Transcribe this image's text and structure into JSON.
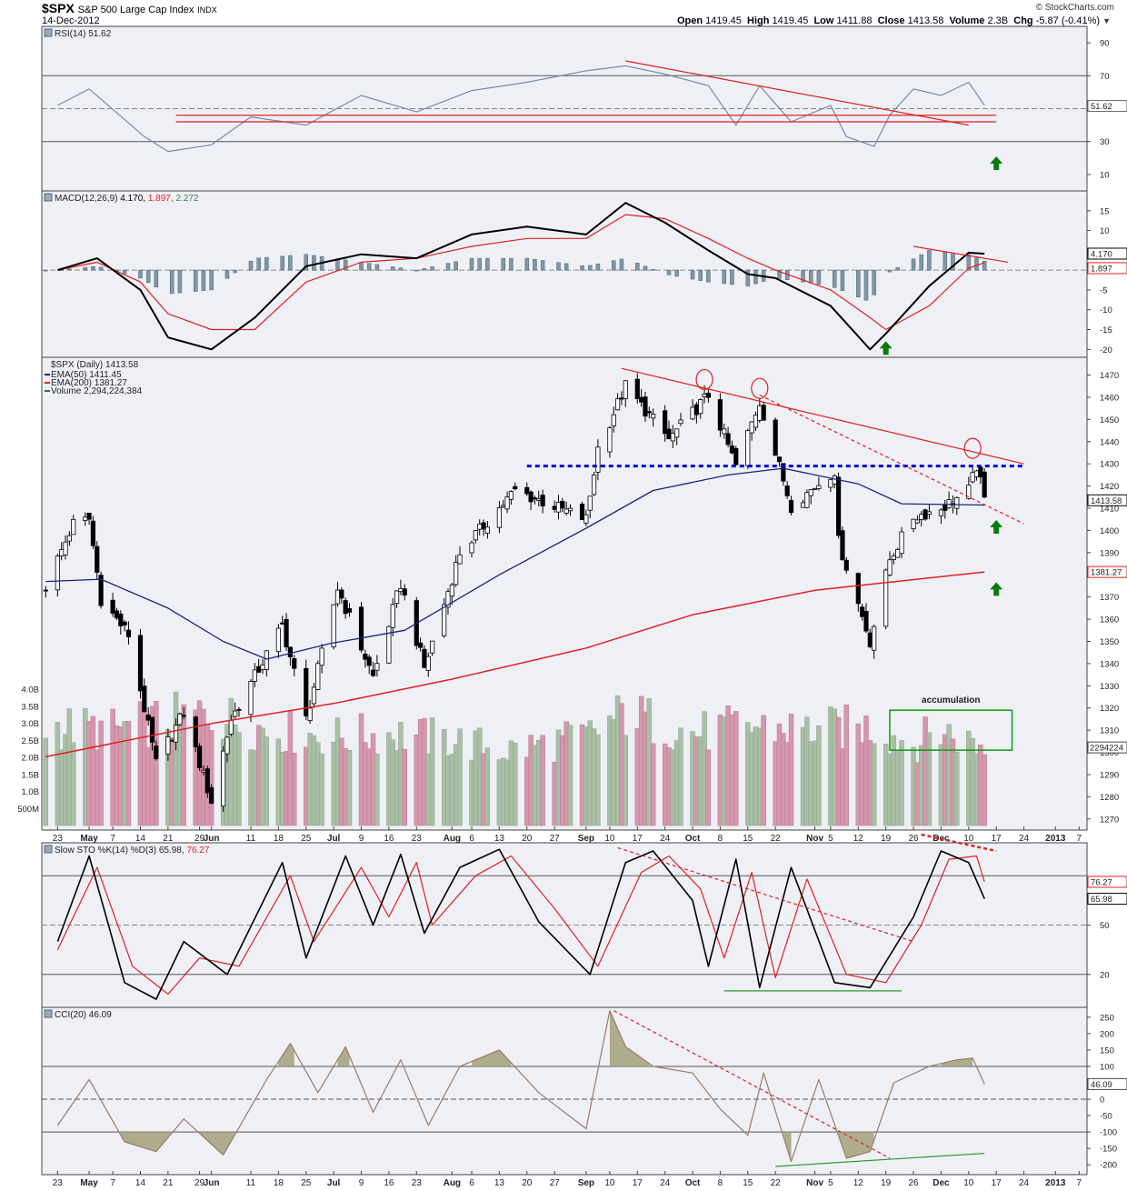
{
  "header": {
    "symbol": "$SPX",
    "name": "S&P 500 Large Cap Index",
    "exchange": "INDX",
    "date": "14-Dec-2012",
    "source": "© StockCharts.com",
    "open_label": "Open",
    "open": "1419.45",
    "high_label": "High",
    "high": "1419.45",
    "low_label": "Low",
    "low": "1411.88",
    "close_label": "Close",
    "close": "1413.58",
    "volume_label": "Volume",
    "volume": "2.3B",
    "chg_label": "Chg",
    "chg": "-5.87 (-0.41%)"
  },
  "colors": {
    "panel_bg": "#eef0f6",
    "up_volume": "#a9bfa6",
    "down_volume": "#d597ad",
    "ema50": "#1a237e",
    "ema200": "#e02020",
    "annotation_red": "#e02020",
    "resistance_blue": "#0000cc",
    "arrow_green": "#0a7a0a",
    "histogram": "#7f97a6",
    "rsi_line": "#7b8aa8",
    "cci_line": "#9a7a68",
    "cci_fill": "#a3a07a"
  },
  "chart_data": [
    {
      "type": "line",
      "panel": "rsi",
      "title": "RSI(14) 51.62",
      "ylim": [
        0,
        100
      ],
      "y_ticks": [
        90,
        70,
        50,
        30,
        10
      ],
      "reference_lines": [
        70,
        30
      ],
      "last_value_label": "51.62",
      "series": [
        {
          "x": [
            "2012-04-23",
            "2012-05-01",
            "2012-05-15",
            "2012-05-21",
            "2012-06-01",
            "2012-06-11",
            "2012-06-25",
            "2012-07-09",
            "2012-07-23",
            "2012-08-06",
            "2012-08-20",
            "2012-09-04",
            "2012-09-14",
            "2012-09-24",
            "2012-10-05",
            "2012-10-12",
            "2012-10-18",
            "2012-10-26",
            "2012-11-05",
            "2012-11-09",
            "2012-11-16",
            "2012-11-20",
            "2012-11-26",
            "2012-12-03",
            "2012-12-10",
            "2012-12-14"
          ],
          "values": [
            52,
            62,
            33,
            24,
            28,
            45,
            40,
            58,
            48,
            61,
            66,
            73,
            76,
            71,
            64,
            40,
            64,
            42,
            52,
            33,
            27,
            46,
            62,
            58,
            66,
            52
          ]
        }
      ],
      "annotations": [
        {
          "kind": "trendline",
          "from": [
            "2012-05-23",
            46
          ],
          "to": [
            "2012-12-17",
            46
          ]
        },
        {
          "kind": "trendline",
          "from": [
            "2012-05-23",
            42
          ],
          "to": [
            "2012-12-17",
            42
          ]
        },
        {
          "kind": "trendline",
          "from": [
            "2012-09-14",
            79
          ],
          "to": [
            "2012-12-10",
            40
          ]
        },
        {
          "kind": "arrow-up",
          "at": [
            "2012-12-17",
            16
          ]
        }
      ]
    },
    {
      "type": "line",
      "panel": "macd",
      "title": "MACD(12,26,9)",
      "title_values": [
        "4.170",
        "1.897",
        "2.272"
      ],
      "ylim": [
        -22,
        20
      ],
      "y_ticks": [
        15,
        10,
        5,
        0,
        -5,
        -10,
        -15,
        -20
      ],
      "last_value_labels": [
        "4.170",
        "1.897"
      ],
      "series": [
        {
          "name": "MACD",
          "x": [
            "2012-04-23",
            "2012-05-03",
            "2012-05-14",
            "2012-05-21",
            "2012-06-01",
            "2012-06-12",
            "2012-06-25",
            "2012-07-09",
            "2012-07-23",
            "2012-08-06",
            "2012-08-20",
            "2012-09-04",
            "2012-09-14",
            "2012-09-24",
            "2012-10-05",
            "2012-10-15",
            "2012-10-22",
            "2012-11-05",
            "2012-11-15",
            "2012-11-19",
            "2012-11-30",
            "2012-12-10",
            "2012-12-14"
          ],
          "values": [
            0,
            3,
            -5,
            -17,
            -20,
            -12,
            1,
            4,
            3,
            9,
            11,
            9,
            17,
            12,
            5,
            -1,
            -2,
            -9,
            -20,
            -16,
            -4,
            4.4,
            4.17
          ]
        },
        {
          "name": "Signal",
          "x": [
            "2012-04-23",
            "2012-05-03",
            "2012-05-14",
            "2012-05-21",
            "2012-06-01",
            "2012-06-12",
            "2012-06-25",
            "2012-07-09",
            "2012-07-23",
            "2012-08-06",
            "2012-08-20",
            "2012-09-04",
            "2012-09-14",
            "2012-09-24",
            "2012-10-05",
            "2012-10-15",
            "2012-10-22",
            "2012-11-05",
            "2012-11-15",
            "2012-11-19",
            "2012-11-30",
            "2012-12-10",
            "2012-12-14"
          ],
          "values": [
            0,
            2,
            -3,
            -11,
            -15,
            -15,
            -3,
            2,
            3,
            6,
            8,
            8,
            14,
            13,
            8,
            3,
            0,
            -5,
            -12,
            -15,
            -9,
            0.5,
            1.897
          ]
        }
      ],
      "annotations": [
        {
          "kind": "trendline",
          "from": [
            "2012-11-26",
            6
          ],
          "to": [
            "2012-12-20",
            2
          ]
        },
        {
          "kind": "arrow-up",
          "at": [
            "2012-11-19",
            -20
          ]
        }
      ]
    },
    {
      "type": "candlestick",
      "panel": "price",
      "title": "$SPX (Daily) 1413.58",
      "legend": [
        "EMA(50) 1411.45",
        "EMA(200) 1381.27",
        "Volume 2,294,224,384"
      ],
      "ylim": [
        1265,
        1478
      ],
      "y_ticks": [
        1470,
        1460,
        1450,
        1440,
        1430,
        1420,
        1410,
        1400,
        1390,
        1380,
        1370,
        1360,
        1350,
        1340,
        1330,
        1320,
        1310,
        1300,
        1290,
        1280,
        1270
      ],
      "last_value_labels": [
        "1413.58",
        "1381.27"
      ],
      "x_tick_labels": [
        "23",
        "May",
        "7",
        "14",
        "21",
        "29",
        "Jun",
        "11",
        "18",
        "25",
        "Jul",
        "9",
        "16",
        "23",
        "Aug",
        "6",
        "13",
        "20",
        "27",
        "Sep",
        "10",
        "17",
        "24",
        "Oct",
        "8",
        "15",
        "22",
        "Nov",
        "5",
        "12",
        "19",
        "26",
        "Dec",
        "10",
        "17",
        "24",
        "2013",
        "7"
      ],
      "close_path": {
        "x": [
          "2012-04-20",
          "2012-04-27",
          "2012-05-01",
          "2012-05-04",
          "2012-05-11",
          "2012-05-18",
          "2012-05-25",
          "2012-06-01",
          "2012-06-06",
          "2012-06-19",
          "2012-06-25",
          "2012-07-03",
          "2012-07-12",
          "2012-07-19",
          "2012-07-25",
          "2012-08-03",
          "2012-08-17",
          "2012-08-24",
          "2012-09-04",
          "2012-09-07",
          "2012-09-14",
          "2012-09-25",
          "2012-10-05",
          "2012-10-12",
          "2012-10-18",
          "2012-10-26",
          "2012-11-06",
          "2012-11-07",
          "2012-11-15",
          "2012-11-20",
          "2012-11-26",
          "2012-12-03",
          "2012-12-10",
          "2012-12-12",
          "2012-12-14"
        ],
        "values": [
          1375,
          1403,
          1405,
          1369,
          1353,
          1295,
          1318,
          1278,
          1315,
          1357,
          1315,
          1374,
          1334,
          1376,
          1338,
          1390,
          1418,
          1413,
          1405,
          1437,
          1465,
          1441,
          1461,
          1429,
          1458,
          1411,
          1427,
          1395,
          1350,
          1387,
          1406,
          1410,
          1418,
          1429,
          1413.58
        ]
      },
      "ema50": {
        "x": [
          "2012-04-20",
          "2012-05-04",
          "2012-05-21",
          "2012-06-04",
          "2012-06-15",
          "2012-07-01",
          "2012-07-20",
          "2012-08-13",
          "2012-09-04",
          "2012-09-21",
          "2012-10-10",
          "2012-10-24",
          "2012-11-12",
          "2012-11-23",
          "2012-12-14"
        ],
        "values": [
          1377,
          1378,
          1365,
          1350,
          1342,
          1349,
          1355,
          1380,
          1401,
          1418,
          1425,
          1428,
          1421,
          1412,
          1411.45
        ]
      },
      "ema200": {
        "x": [
          "2012-04-20",
          "2012-06-01",
          "2012-07-02",
          "2012-08-01",
          "2012-09-04",
          "2012-10-01",
          "2012-11-01",
          "2012-12-14"
        ],
        "values": [
          1298,
          1313,
          1322,
          1333,
          1347,
          1362,
          1373,
          1381.27
        ]
      },
      "volume": {
        "unit": "B",
        "y_ticks": [
          "4.0B",
          "3.5B",
          "3.0B",
          "2.5B",
          "2.0B",
          "1.5B",
          "1.0B",
          "500M"
        ],
        "last_value_label": "2294224",
        "x": [
          "2012-04-23",
          "2012-05-07",
          "2012-05-21",
          "2012-06-01",
          "2012-06-15",
          "2012-07-02",
          "2012-07-16",
          "2012-08-01",
          "2012-08-15",
          "2012-09-04",
          "2012-09-14",
          "2012-10-01",
          "2012-10-15",
          "2012-11-01",
          "2012-11-15",
          "2012-11-26",
          "2012-12-03",
          "2012-12-14"
        ],
        "values": [
          2.9,
          2.8,
          3.1,
          3.3,
          2.8,
          2.6,
          2.7,
          2.5,
          2.2,
          2.6,
          3.3,
          2.7,
          2.9,
          2.8,
          2.9,
          2.4,
          2.8,
          2.29
        ]
      },
      "annotations": [
        {
          "kind": "trendline",
          "from": [
            "2012-09-13",
            1473
          ],
          "to": [
            "2012-12-24",
            1430
          ]
        },
        {
          "kind": "dashed-trendline",
          "from": [
            "2012-10-18",
            1461
          ],
          "to": [
            "2012-12-24",
            1403
          ]
        },
        {
          "kind": "resistance",
          "level": 1429,
          "from": "2012-08-20",
          "to": "2012-12-24"
        },
        {
          "kind": "circle",
          "at": [
            "2012-10-04",
            1468
          ]
        },
        {
          "kind": "circle",
          "at": [
            "2012-10-18",
            1464
          ]
        },
        {
          "kind": "circle",
          "at": [
            "2012-12-11",
            1437
          ]
        },
        {
          "kind": "arrow-up",
          "at": [
            "2012-12-17",
            1401
          ]
        },
        {
          "kind": "arrow-up",
          "at": [
            "2012-12-17",
            1373
          ]
        },
        {
          "kind": "box",
          "label": "accumulation",
          "from": [
            "2012-11-20",
            1319
          ],
          "to": [
            "2012-12-21",
            1301
          ]
        }
      ]
    },
    {
      "type": "line",
      "panel": "stochastic",
      "title": "Slow STO %K(14) %D(3)",
      "title_values": [
        "65.98",
        "76.27"
      ],
      "ylim": [
        0,
        100
      ],
      "y_ticks": [
        50,
        20
      ],
      "reference_lines": [
        80,
        20
      ],
      "last_value_labels": [
        "76.27",
        "65.98"
      ],
      "series": [
        {
          "name": "%K",
          "x": [
            "2012-04-23",
            "2012-05-01",
            "2012-05-10",
            "2012-05-18",
            "2012-05-25",
            "2012-06-05",
            "2012-06-19",
            "2012-06-25",
            "2012-07-05",
            "2012-07-12",
            "2012-07-19",
            "2012-07-25",
            "2012-08-03",
            "2012-08-13",
            "2012-08-23",
            "2012-09-05",
            "2012-09-14",
            "2012-09-21",
            "2012-10-01",
            "2012-10-05",
            "2012-10-12",
            "2012-10-18",
            "2012-10-26",
            "2012-11-06",
            "2012-11-15",
            "2012-11-26",
            "2012-12-03",
            "2012-12-10",
            "2012-12-14"
          ],
          "values": [
            40,
            92,
            15,
            5,
            40,
            20,
            88,
            30,
            92,
            50,
            93,
            45,
            85,
            96,
            52,
            20,
            88,
            95,
            65,
            25,
            90,
            12,
            85,
            15,
            12,
            55,
            95,
            88,
            65.98
          ]
        },
        {
          "name": "%D",
          "x": [
            "2012-04-23",
            "2012-05-03",
            "2012-05-12",
            "2012-05-21",
            "2012-05-29",
            "2012-06-08",
            "2012-06-21",
            "2012-06-27",
            "2012-07-09",
            "2012-07-16",
            "2012-07-23",
            "2012-07-27",
            "2012-08-07",
            "2012-08-16",
            "2012-08-27",
            "2012-09-07",
            "2012-09-18",
            "2012-09-25",
            "2012-10-03",
            "2012-10-09",
            "2012-10-16",
            "2012-10-22",
            "2012-10-30",
            "2012-11-09",
            "2012-11-19",
            "2012-11-28",
            "2012-12-05",
            "2012-12-12",
            "2012-12-14"
          ],
          "values": [
            35,
            85,
            25,
            8,
            30,
            25,
            80,
            40,
            85,
            55,
            88,
            50,
            80,
            92,
            60,
            25,
            82,
            92,
            72,
            30,
            82,
            18,
            78,
            20,
            15,
            50,
            90,
            92,
            76.27
          ]
        }
      ],
      "annotations": [
        {
          "kind": "dashed-trendline",
          "from": [
            "2012-09-12",
            97
          ],
          "to": [
            "2012-11-26",
            40
          ]
        },
        {
          "kind": "dashed-trendline",
          "from": [
            "2012-11-28",
            105
          ],
          "to": [
            "2012-12-17",
            95
          ]
        },
        {
          "kind": "trendline",
          "from": [
            "2012-10-09",
            10
          ],
          "to": [
            "2012-11-23",
            10
          ]
        }
      ]
    },
    {
      "type": "area",
      "panel": "cci",
      "title": "CCI(20) 46.09",
      "ylim": [
        -230,
        280
      ],
      "y_ticks": [
        250,
        200,
        150,
        100,
        50,
        0,
        -50,
        -100,
        -150,
        -200
      ],
      "reference_lines": [
        100,
        0,
        -100
      ],
      "last_value_label": "46.09",
      "x_tick_labels": [
        "23",
        "May",
        "7",
        "14",
        "21",
        "29",
        "Jun",
        "11",
        "18",
        "25",
        "Jul",
        "9",
        "16",
        "23",
        "Aug",
        "6",
        "13",
        "20",
        "27",
        "Sep",
        "10",
        "17",
        "24",
        "Oct",
        "8",
        "15",
        "22",
        "Nov",
        "5",
        "12",
        "19",
        "26",
        "Dec",
        "10",
        "17",
        "24",
        "2013",
        "7"
      ],
      "series": [
        {
          "x": [
            "2012-04-23",
            "2012-05-01",
            "2012-05-10",
            "2012-05-18",
            "2012-05-25",
            "2012-06-04",
            "2012-06-15",
            "2012-06-21",
            "2012-06-28",
            "2012-07-05",
            "2012-07-12",
            "2012-07-19",
            "2012-07-26",
            "2012-08-03",
            "2012-08-13",
            "2012-08-23",
            "2012-09-04",
            "2012-09-10",
            "2012-09-14",
            "2012-09-21",
            "2012-10-01",
            "2012-10-08",
            "2012-10-15",
            "2012-10-19",
            "2012-10-26",
            "2012-11-02",
            "2012-11-09",
            "2012-11-15",
            "2012-11-21",
            "2012-11-30",
            "2012-12-07",
            "2012-12-11",
            "2012-12-14"
          ],
          "values": [
            -80,
            60,
            -130,
            -160,
            -60,
            -170,
            60,
            170,
            20,
            160,
            -40,
            120,
            -80,
            100,
            150,
            20,
            -90,
            270,
            160,
            100,
            80,
            -30,
            -110,
            80,
            -190,
            60,
            -180,
            -160,
            50,
            100,
            120,
            125,
            46.09
          ]
        }
      ],
      "annotations": [
        {
          "kind": "dashed-trendline",
          "from": [
            "2012-09-11",
            270
          ],
          "to": [
            "2012-11-20",
            -180
          ]
        },
        {
          "kind": "trendline",
          "from": [
            "2012-10-22",
            -205
          ],
          "to": [
            "2012-12-14",
            -165
          ]
        }
      ]
    }
  ]
}
